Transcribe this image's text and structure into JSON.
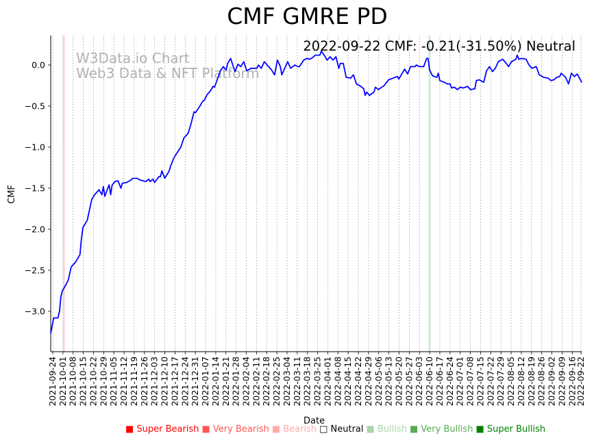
{
  "chart_data": {
    "type": "line",
    "title": "CMF GMRE PD",
    "xlabel": "Date",
    "ylabel": "CMF",
    "ylim": [
      -3.5,
      0.36
    ],
    "yticks": [
      0.0,
      -0.5,
      -1.0,
      -1.5,
      -2.0,
      -2.5,
      -3.0
    ],
    "ytick_labels": [
      "0.0",
      "−0.5",
      "−1.0",
      "−1.5",
      "−2.0",
      "−2.5",
      "−3.0"
    ],
    "x_start_date": "2021-09-24",
    "xtick_days": [
      0,
      7,
      14,
      21,
      28,
      35,
      42,
      49,
      56,
      63,
      70,
      77,
      84,
      91,
      98,
      105,
      112,
      119,
      126,
      133,
      140,
      147,
      154,
      161,
      168,
      175,
      182,
      189,
      196,
      203,
      210,
      217,
      224,
      231,
      238,
      245,
      252,
      259,
      266,
      273,
      280,
      287,
      294,
      301,
      308,
      315,
      322,
      329,
      336,
      343,
      350,
      357,
      363
    ],
    "xtick_labels": [
      "2021-09-24",
      "2021-10-01",
      "2021-10-08",
      "2021-10-15",
      "2021-10-22",
      "2021-10-29",
      "2021-11-05",
      "2021-11-12",
      "2021-11-19",
      "2021-11-26",
      "2021-12-03",
      "2021-12-10",
      "2021-12-17",
      "2021-12-24",
      "2021-12-31",
      "2022-01-07",
      "2022-01-14",
      "2022-01-21",
      "2022-01-28",
      "2022-02-04",
      "2022-02-11",
      "2022-02-18",
      "2022-02-25",
      "2022-03-04",
      "2022-03-11",
      "2022-03-18",
      "2022-03-25",
      "2022-04-01",
      "2022-04-08",
      "2022-04-15",
      "2022-04-22",
      "2022-04-29",
      "2022-05-06",
      "2022-05-13",
      "2022-05-20",
      "2022-05-27",
      "2022-06-03",
      "2022-06-10",
      "2022-06-17",
      "2022-06-24",
      "2022-07-01",
      "2022-07-08",
      "2022-07-15",
      "2022-07-22",
      "2022-07-29",
      "2022-08-05",
      "2022-08-12",
      "2022-08-19",
      "2022-08-26",
      "2022-09-02",
      "2022-09-09",
      "2022-09-16",
      "2022-09-22"
    ],
    "grid": "vertical-dotted",
    "series": [
      {
        "name": "CMF",
        "color": "#0000ff",
        "x_days": [
          0,
          2,
          5,
          6,
          7,
          8,
          10,
          12,
          14,
          17,
          20,
          21,
          22,
          25,
          28,
          30,
          31,
          33,
          35,
          36,
          37,
          39,
          40,
          41,
          42,
          44,
          46,
          48,
          49,
          52,
          55,
          56,
          59,
          61,
          65,
          67,
          68,
          70,
          71,
          74,
          75,
          76,
          78,
          81,
          82,
          84,
          86,
          89,
          91,
          94,
          96,
          98,
          99,
          102,
          104,
          105,
          107,
          109,
          111,
          112,
          114,
          116,
          118,
          120,
          121,
          123,
          126,
          128,
          130,
          132,
          134,
          137,
          139,
          141,
          142,
          144,
          146,
          149,
          151,
          153,
          155,
          157,
          158,
          160,
          162,
          164,
          167,
          169,
          170,
          173,
          175,
          177,
          179,
          181,
          184,
          185,
          187,
          189,
          191,
          193,
          195,
          197,
          198,
          200,
          202,
          205,
          207,
          209,
          212,
          214,
          215,
          216,
          218,
          221,
          222,
          224,
          228,
          231,
          234,
          237,
          238,
          242,
          244,
          246,
          249,
          250,
          252,
          255,
          257,
          258,
          259,
          261,
          264,
          265,
          266,
          269,
          271,
          273,
          274,
          276,
          278,
          280,
          282,
          285,
          287,
          290,
          291,
          293,
          296,
          298,
          300,
          302,
          304,
          306,
          309,
          311,
          313,
          315,
          318,
          319,
          320,
          322,
          325,
          327,
          329,
          332,
          334,
          337,
          340,
          342,
          344,
          346,
          348,
          349,
          352,
          354,
          356,
          358,
          360,
          363
        ],
        "values": [
          -3.27,
          -3.08,
          -3.08,
          -3.0,
          -2.82,
          -2.75,
          -2.69,
          -2.62,
          -2.46,
          -2.4,
          -2.31,
          -2.12,
          -1.98,
          -1.89,
          -1.64,
          -1.58,
          -1.56,
          -1.52,
          -1.58,
          -1.48,
          -1.6,
          -1.5,
          -1.46,
          -1.58,
          -1.46,
          -1.42,
          -1.41,
          -1.5,
          -1.44,
          -1.43,
          -1.4,
          -1.38,
          -1.38,
          -1.4,
          -1.42,
          -1.39,
          -1.42,
          -1.39,
          -1.43,
          -1.36,
          -1.36,
          -1.29,
          -1.38,
          -1.29,
          -1.23,
          -1.14,
          -1.08,
          -1.0,
          -0.89,
          -0.83,
          -0.71,
          -0.57,
          -0.58,
          -0.5,
          -0.44,
          -0.43,
          -0.36,
          -0.32,
          -0.26,
          -0.27,
          -0.17,
          -0.07,
          -0.02,
          -0.06,
          0.02,
          0.08,
          -0.08,
          0.01,
          -0.02,
          0.04,
          -0.07,
          -0.04,
          -0.04,
          -0.04,
          0.0,
          -0.04,
          0.04,
          -0.02,
          -0.06,
          -0.12,
          0.06,
          -0.02,
          -0.12,
          -0.04,
          0.04,
          -0.04,
          0.0,
          -0.02,
          -0.02,
          0.06,
          0.08,
          0.07,
          0.09,
          0.12,
          0.12,
          0.17,
          0.12,
          0.06,
          0.1,
          0.06,
          0.1,
          -0.04,
          0.02,
          0.02,
          -0.15,
          -0.16,
          -0.12,
          -0.23,
          -0.26,
          -0.29,
          -0.37,
          -0.33,
          -0.37,
          -0.33,
          -0.27,
          -0.3,
          -0.25,
          -0.18,
          -0.16,
          -0.14,
          -0.17,
          -0.05,
          -0.11,
          -0.02,
          -0.02,
          0.0,
          -0.02,
          -0.02,
          0.08,
          0.08,
          -0.06,
          -0.13,
          -0.15,
          -0.1,
          -0.19,
          -0.21,
          -0.23,
          -0.23,
          -0.28,
          -0.27,
          -0.3,
          -0.27,
          -0.28,
          -0.26,
          -0.3,
          -0.29,
          -0.19,
          -0.18,
          -0.21,
          -0.07,
          -0.02,
          -0.08,
          -0.04,
          0.04,
          0.07,
          0.03,
          -0.02,
          0.04,
          0.07,
          0.12,
          0.07,
          0.08,
          0.07,
          0.0,
          -0.04,
          -0.02,
          -0.12,
          -0.15,
          -0.16,
          -0.19,
          -0.18,
          -0.15,
          -0.14,
          -0.1,
          -0.15,
          -0.23,
          -0.1,
          -0.14,
          -0.11,
          -0.21
        ]
      }
    ],
    "signal_lines": [
      {
        "day": 9,
        "signal": "Very Bearish",
        "color": "#ffcccc"
      },
      {
        "day": 259,
        "signal": "Bullish",
        "color": "#c8e6c8"
      }
    ],
    "annotation": "2022-09-22 CMF: -0.21(-31.50%) Neutral",
    "watermark": [
      "W3Data.io Chart",
      "Web3 Data & NFT Platform"
    ],
    "legend": [
      {
        "label": "Super Bearish",
        "color": "#ff0000"
      },
      {
        "label": "Very Bearish",
        "color": "#ff5555"
      },
      {
        "label": "Bearish",
        "color": "#ffaaaa"
      },
      {
        "label": "Neutral",
        "color": "#000000"
      },
      {
        "label": "Bullish",
        "color": "#aad4aa"
      },
      {
        "label": "Very Bullish",
        "color": "#55aa55"
      },
      {
        "label": "Super Bullish",
        "color": "#008000"
      }
    ]
  }
}
